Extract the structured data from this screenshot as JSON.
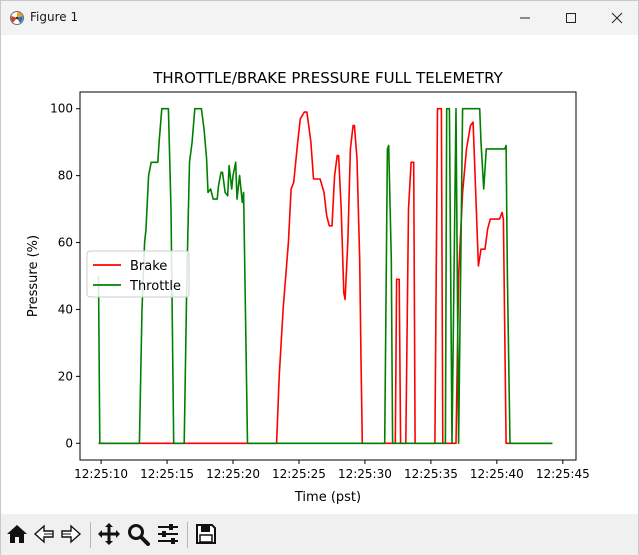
{
  "window": {
    "title": "Figure 1"
  },
  "toolbar": {
    "buttons": [
      "home-icon",
      "back-icon",
      "forward-icon",
      "pan-icon",
      "zoom-icon",
      "configure-subplots-icon",
      "save-icon"
    ]
  },
  "chart_data": {
    "type": "line",
    "title": "THROTTLE/BRAKE PRESSURE FULL TELEMETRY",
    "xlabel": "Time (pst)",
    "ylabel": "Pressure (%)",
    "xlim": [
      "12:25:08.4",
      "12:25:46.0"
    ],
    "ylim": [
      -5,
      105
    ],
    "xticks": [
      "12:25:10",
      "12:25:15",
      "12:25:20",
      "12:25:25",
      "12:25:30",
      "12:25:35",
      "12:25:40",
      "12:25:45"
    ],
    "yticks": [
      0,
      20,
      40,
      60,
      80,
      100
    ],
    "legend": {
      "position": "center-left",
      "entries": [
        "Brake",
        "Throttle"
      ]
    },
    "grid": false,
    "series": [
      {
        "name": "Brake",
        "color": "#ff0000",
        "points": [
          [
            "12:25:09.8",
            0
          ],
          [
            "12:25:23.3",
            0
          ],
          [
            "12:25:23.5",
            20
          ],
          [
            "12:25:23.8",
            40
          ],
          [
            "12:25:24.2",
            60
          ],
          [
            "12:25:24.4",
            76
          ],
          [
            "12:25:24.6",
            78
          ],
          [
            "12:25:24.9",
            90
          ],
          [
            "12:25:25.1",
            97
          ],
          [
            "12:25:25.4",
            99
          ],
          [
            "12:25:25.6",
            99
          ],
          [
            "12:25:25.9",
            90
          ],
          [
            "12:25:26.1",
            79
          ],
          [
            "12:25:26.4",
            79
          ],
          [
            "12:25:26.6",
            79
          ],
          [
            "12:25:26.9",
            75
          ],
          [
            "12:25:27.1",
            68
          ],
          [
            "12:25:27.3",
            65
          ],
          [
            "12:25:27.5",
            65
          ],
          [
            "12:25:27.7",
            80
          ],
          [
            "12:25:27.9",
            86
          ],
          [
            "12:25:28.0",
            86
          ],
          [
            "12:25:28.2",
            70
          ],
          [
            "12:25:28.4",
            45
          ],
          [
            "12:25:28.5",
            43
          ],
          [
            "12:25:28.7",
            60
          ],
          [
            "12:25:28.9",
            88
          ],
          [
            "12:25:29.1",
            95
          ],
          [
            "12:25:29.2",
            95
          ],
          [
            "12:25:29.4",
            85
          ],
          [
            "12:25:29.6",
            55
          ],
          [
            "12:25:29.7",
            25
          ],
          [
            "12:25:29.8",
            0
          ],
          [
            "12:25:32.3",
            0
          ],
          [
            "12:25:32.4",
            49
          ],
          [
            "12:25:32.6",
            49
          ],
          [
            "12:25:32.7",
            0
          ],
          [
            "12:25:33.1",
            0
          ],
          [
            "12:25:33.3",
            70
          ],
          [
            "12:25:33.5",
            84
          ],
          [
            "12:25:33.7",
            84
          ],
          [
            "12:25:33.8",
            0
          ],
          [
            "12:25:35.3",
            0
          ],
          [
            "12:25:35.5",
            100
          ],
          [
            "12:25:35.8",
            100
          ],
          [
            "12:25:35.9",
            0
          ],
          [
            "12:25:36.9",
            0
          ],
          [
            "12:25:37.1",
            50
          ],
          [
            "12:25:37.4",
            75
          ],
          [
            "12:25:37.7",
            88
          ],
          [
            "12:25:38.0",
            95
          ],
          [
            "12:25:38.2",
            96
          ],
          [
            "12:25:38.4",
            75
          ],
          [
            "12:25:38.6",
            53
          ],
          [
            "12:25:38.8",
            58
          ],
          [
            "12:25:39.1",
            58
          ],
          [
            "12:25:39.3",
            64
          ],
          [
            "12:25:39.5",
            67
          ],
          [
            "12:25:40.2",
            67
          ],
          [
            "12:25:40.4",
            69
          ],
          [
            "12:25:40.5",
            67
          ],
          [
            "12:25:40.7",
            0
          ],
          [
            "12:25:44.2",
            0
          ]
        ]
      },
      {
        "name": "Throttle",
        "color": "#008000",
        "points": [
          [
            "12:25:09.8",
            50
          ],
          [
            "12:25:09.9",
            0
          ],
          [
            "12:25:12.9",
            0
          ],
          [
            "12:25:13.1",
            40
          ],
          [
            "12:25:13.3",
            60
          ],
          [
            "12:25:13.4",
            64
          ],
          [
            "12:25:13.6",
            80
          ],
          [
            "12:25:13.8",
            84
          ],
          [
            "12:25:14.3",
            84
          ],
          [
            "12:25:14.4",
            90
          ],
          [
            "12:25:14.6",
            100
          ],
          [
            "12:25:15.1",
            100
          ],
          [
            "12:25:15.3",
            70
          ],
          [
            "12:25:15.5",
            0
          ],
          [
            "12:25:16.3",
            0
          ],
          [
            "12:25:16.5",
            50
          ],
          [
            "12:25:16.7",
            84
          ],
          [
            "12:25:16.9",
            90
          ],
          [
            "12:25:17.1",
            100
          ],
          [
            "12:25:17.6",
            100
          ],
          [
            "12:25:17.8",
            94
          ],
          [
            "12:25:18.0",
            85
          ],
          [
            "12:25:18.1",
            75
          ],
          [
            "12:25:18.3",
            76
          ],
          [
            "12:25:18.5",
            73
          ],
          [
            "12:25:18.8",
            73
          ],
          [
            "12:25:18.9",
            77
          ],
          [
            "12:25:19.1",
            81
          ],
          [
            "12:25:19.2",
            81
          ],
          [
            "12:25:19.4",
            75
          ],
          [
            "12:25:19.6",
            74
          ],
          [
            "12:25:19.7",
            83
          ],
          [
            "12:25:19.9",
            76
          ],
          [
            "12:25:20.0",
            80
          ],
          [
            "12:25:20.2",
            84
          ],
          [
            "12:25:20.3",
            73
          ],
          [
            "12:25:20.5",
            80
          ],
          [
            "12:25:20.7",
            72
          ],
          [
            "12:25:20.8",
            75
          ],
          [
            "12:25:21.1",
            0
          ],
          [
            "12:25:31.5",
            0
          ],
          [
            "12:25:31.7",
            88
          ],
          [
            "12:25:31.8",
            89
          ],
          [
            "12:25:32.0",
            55
          ],
          [
            "12:25:32.1",
            0
          ],
          [
            "12:25:36.1",
            0
          ],
          [
            "12:25:36.2",
            100
          ],
          [
            "12:25:36.4",
            100
          ],
          [
            "12:25:36.6",
            0
          ],
          [
            "12:25:36.9",
            100
          ],
          [
            "12:25:37.1",
            0
          ],
          [
            "12:25:37.4",
            100
          ],
          [
            "12:25:38.7",
            100
          ],
          [
            "12:25:38.8",
            90
          ],
          [
            "12:25:39.0",
            76
          ],
          [
            "12:25:39.2",
            88
          ],
          [
            "12:25:40.6",
            88
          ],
          [
            "12:25:40.7",
            89
          ],
          [
            "12:25:40.8",
            50
          ],
          [
            "12:25:41.0",
            0
          ],
          [
            "12:25:44.2",
            0
          ]
        ]
      }
    ]
  }
}
